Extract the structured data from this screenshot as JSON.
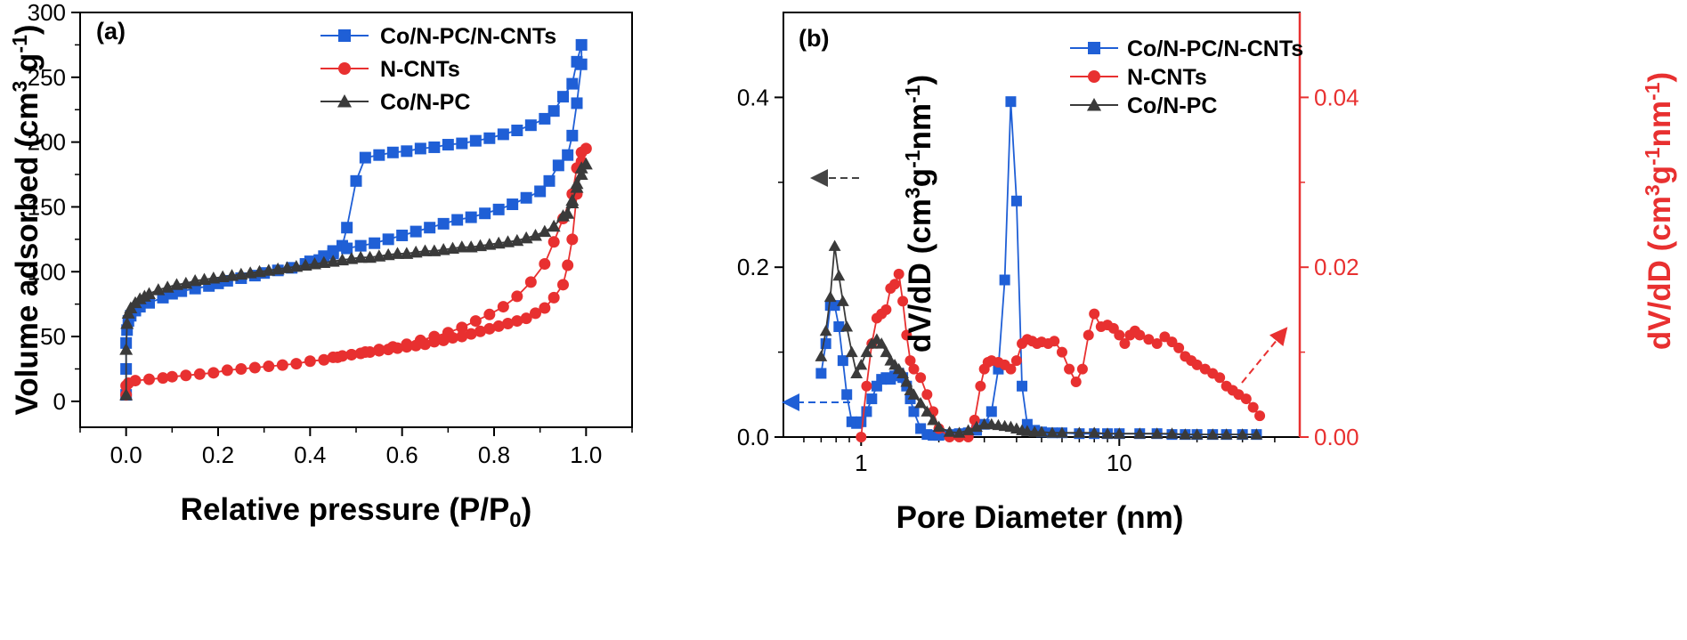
{
  "chart_data": [
    {
      "type": "line",
      "panel_label": "(a)",
      "xlabel": "Relative pressure (P/P",
      "xlabel_sub": "0",
      "xlabel_end": ")",
      "ylabel": "Volume adsorbed (cm",
      "ylabel_sup": "3",
      "ylabel_end": " g",
      "ylabel_sup2": "-1",
      "ylabel_close": ")",
      "xlim": [
        -0.1,
        1.1
      ],
      "ylim": [
        -20,
        300
      ],
      "xticks": [
        "0.0",
        "0.2",
        "0.4",
        "0.6",
        "0.8",
        "1.0"
      ],
      "xtick_values": [
        0,
        0.2,
        0.4,
        0.6,
        0.8,
        1.0
      ],
      "yticks": [
        "0",
        "50",
        "100",
        "150",
        "200",
        "250",
        "300"
      ],
      "ytick_values": [
        0,
        50,
        100,
        150,
        200,
        250,
        300
      ],
      "legend_position": "top-right",
      "series": [
        {
          "name": "Co/N-PC/N-CNTs",
          "color": "#1f5fd6",
          "marker": "square",
          "x": [
            0.0,
            0.0,
            0.0,
            0.002,
            0.005,
            0.01,
            0.02,
            0.03,
            0.05,
            0.08,
            0.1,
            0.12,
            0.15,
            0.18,
            0.2,
            0.22,
            0.25,
            0.28,
            0.3,
            0.33,
            0.36,
            0.39,
            0.42,
            0.45,
            0.47,
            0.48,
            0.5,
            0.52,
            0.55,
            0.58,
            0.61,
            0.64,
            0.67,
            0.7,
            0.73,
            0.76,
            0.79,
            0.82,
            0.85,
            0.88,
            0.91,
            0.93,
            0.95,
            0.97,
            0.98,
            0.99,
            0.99,
            0.98,
            0.97,
            0.96,
            0.94,
            0.92,
            0.9,
            0.87,
            0.84,
            0.81,
            0.78,
            0.75,
            0.72,
            0.69,
            0.66,
            0.63,
            0.6,
            0.57,
            0.54,
            0.51,
            0.48,
            0.45,
            0.43,
            0.4
          ],
          "y": [
            5,
            25,
            45,
            55,
            62,
            66,
            70,
            73,
            76,
            80,
            83,
            85,
            87,
            89,
            91,
            93,
            95,
            97,
            99,
            101,
            103,
            106,
            109,
            114,
            120,
            134,
            170,
            188,
            190,
            192,
            193,
            195,
            196,
            198,
            199,
            201,
            203,
            206,
            209,
            213,
            218,
            224,
            235,
            245,
            262,
            275,
            260,
            230,
            205,
            190,
            182,
            170,
            162,
            157,
            152,
            148,
            145,
            142,
            140,
            137,
            134,
            131,
            128,
            125,
            122,
            120,
            118,
            116,
            112,
            108
          ]
        },
        {
          "name": "N-CNTs",
          "color": "#e83030",
          "marker": "circle",
          "x": [
            0.0,
            0.0,
            0.005,
            0.02,
            0.05,
            0.08,
            0.1,
            0.13,
            0.16,
            0.19,
            0.22,
            0.25,
            0.28,
            0.31,
            0.34,
            0.37,
            0.4,
            0.43,
            0.46,
            0.49,
            0.52,
            0.55,
            0.58,
            0.61,
            0.64,
            0.67,
            0.7,
            0.73,
            0.76,
            0.79,
            0.82,
            0.85,
            0.88,
            0.91,
            0.93,
            0.95,
            0.97,
            0.98,
            0.99,
            1.0,
            0.99,
            0.98,
            0.97,
            0.96,
            0.95,
            0.93,
            0.91,
            0.89,
            0.87,
            0.85,
            0.83,
            0.81,
            0.79,
            0.77,
            0.75,
            0.73,
            0.71,
            0.69,
            0.67,
            0.65,
            0.63,
            0.61,
            0.59,
            0.57,
            0.55,
            0.53,
            0.51,
            0.49,
            0.47,
            0.45
          ],
          "y": [
            5,
            12,
            14,
            16,
            17,
            18,
            19,
            20,
            21,
            22,
            24,
            25,
            26,
            27,
            28,
            29,
            31,
            32,
            34,
            36,
            38,
            40,
            42,
            44,
            47,
            50,
            53,
            57,
            62,
            67,
            73,
            81,
            92,
            106,
            123,
            141,
            160,
            180,
            192,
            195,
            185,
            160,
            125,
            105,
            90,
            80,
            72,
            68,
            64,
            62,
            60,
            58,
            56,
            54,
            52,
            50,
            49,
            47,
            46,
            44,
            43,
            42,
            41,
            40,
            39,
            38,
            37,
            36,
            35,
            34
          ]
        },
        {
          "name": "Co/N-PC",
          "color": "#3a3a3a",
          "marker": "triangle",
          "x": [
            0.0,
            0.0,
            0.002,
            0.005,
            0.01,
            0.02,
            0.03,
            0.04,
            0.05,
            0.07,
            0.09,
            0.11,
            0.13,
            0.15,
            0.17,
            0.19,
            0.21,
            0.23,
            0.25,
            0.27,
            0.29,
            0.31,
            0.33,
            0.35,
            0.37,
            0.39,
            0.41,
            0.43,
            0.45,
            0.47,
            0.49,
            0.51,
            0.53,
            0.55,
            0.57,
            0.59,
            0.61,
            0.63,
            0.65,
            0.67,
            0.69,
            0.71,
            0.73,
            0.75,
            0.77,
            0.79,
            0.81,
            0.83,
            0.85,
            0.87,
            0.89,
            0.91,
            0.93,
            0.95,
            0.97,
            0.98,
            0.99,
            1.0,
            0.99,
            0.98,
            0.97,
            0.96
          ],
          "y": [
            5,
            40,
            60,
            68,
            72,
            76,
            79,
            81,
            83,
            86,
            88,
            90,
            91,
            93,
            94,
            95,
            96,
            97,
            98,
            99,
            100,
            101,
            102,
            103,
            104,
            105,
            106,
            107,
            108,
            109,
            110,
            111,
            111,
            112,
            113,
            114,
            114,
            115,
            116,
            116,
            117,
            118,
            119,
            119,
            120,
            121,
            122,
            123,
            124,
            126,
            128,
            131,
            135,
            143,
            153,
            168,
            180,
            183,
            175,
            165,
            155,
            145
          ]
        }
      ]
    },
    {
      "type": "line",
      "panel_label": "(b)",
      "xlabel": "Pore Diameter (nm)",
      "ylabel_left": "dV/dD (cm",
      "ylabel_left_sup": "3",
      "ylabel_left_mid": "g",
      "ylabel_left_sup2": "-1",
      "ylabel_left_end": "nm",
      "ylabel_left_sup3": "-1",
      "ylabel_left_close": ")",
      "ylabel_right": "dV/dD (cm",
      "ylabel_right_sup": "3",
      "ylabel_right_mid": "g",
      "ylabel_right_sup2": "-1",
      "ylabel_right_end": "nm",
      "ylabel_right_sup3": "-1",
      "ylabel_right_close": ")",
      "x_scale": "log",
      "xlim": [
        0.5,
        50
      ],
      "ylim_left": [
        0,
        0.5
      ],
      "ylim_right": [
        0,
        0.05
      ],
      "xticks": [
        "1",
        "10"
      ],
      "xtick_values": [
        1,
        10
      ],
      "yticks_left": [
        "0.0",
        "0.2",
        "0.4"
      ],
      "ytick_values_left": [
        0,
        0.2,
        0.4
      ],
      "yticks_right": [
        "0.00",
        "0.02",
        "0.04"
      ],
      "ytick_values_right": [
        0,
        0.02,
        0.04
      ],
      "right_axis_color": "#e83030",
      "legend_position": "top-right",
      "series": [
        {
          "name": "Co/N-PC/N-CNTs",
          "color": "#1f5fd6",
          "marker": "square",
          "axis": "left",
          "x": [
            0.7,
            0.73,
            0.76,
            0.79,
            0.82,
            0.85,
            0.88,
            0.92,
            0.96,
            1.0,
            1.05,
            1.1,
            1.15,
            1.2,
            1.25,
            1.3,
            1.35,
            1.4,
            1.45,
            1.5,
            1.55,
            1.6,
            1.7,
            1.8,
            1.9,
            2.0,
            2.2,
            2.4,
            2.6,
            2.8,
            3.0,
            3.2,
            3.4,
            3.6,
            3.8,
            4.0,
            4.2,
            4.4,
            4.7,
            5.0,
            5.5,
            6.0,
            7.0,
            8.0,
            9.0,
            10.0,
            12.0,
            14.0,
            16.0,
            18.0,
            20.0,
            23.0,
            26.0,
            30.0,
            34.0
          ],
          "y": [
            0.075,
            0.11,
            0.155,
            0.155,
            0.13,
            0.09,
            0.05,
            0.018,
            0.016,
            0.018,
            0.03,
            0.045,
            0.06,
            0.068,
            0.07,
            0.068,
            0.072,
            0.075,
            0.07,
            0.06,
            0.045,
            0.03,
            0.01,
            0.003,
            0.002,
            0.002,
            0.003,
            0.004,
            0.005,
            0.008,
            0.015,
            0.03,
            0.08,
            0.185,
            0.395,
            0.278,
            0.06,
            0.015,
            0.008,
            0.006,
            0.005,
            0.005,
            0.004,
            0.004,
            0.004,
            0.004,
            0.004,
            0.004,
            0.003,
            0.003,
            0.003,
            0.003,
            0.003,
            0.003,
            0.003
          ]
        },
        {
          "name": "N-CNTs",
          "color": "#e83030",
          "marker": "circle",
          "axis": "right",
          "x": [
            1.0,
            1.05,
            1.1,
            1.15,
            1.2,
            1.25,
            1.3,
            1.35,
            1.4,
            1.45,
            1.5,
            1.55,
            1.6,
            1.7,
            1.8,
            1.9,
            2.0,
            2.2,
            2.4,
            2.6,
            2.75,
            2.9,
            3.0,
            3.1,
            3.2,
            3.4,
            3.6,
            3.8,
            4.0,
            4.2,
            4.4,
            4.6,
            4.8,
            5.0,
            5.3,
            5.6,
            6.0,
            6.4,
            6.8,
            7.2,
            7.6,
            8.0,
            8.5,
            9.0,
            9.5,
            10.0,
            10.5,
            11.0,
            11.5,
            12.0,
            13.0,
            14.0,
            15.0,
            16.0,
            17.0,
            18.0,
            19.0,
            20.0,
            21.5,
            23.0,
            24.5,
            26.0,
            27.5,
            29.0,
            31.0,
            33.0,
            35.0
          ],
          "y": [
            0.0,
            0.006,
            0.011,
            0.014,
            0.0145,
            0.015,
            0.0175,
            0.018,
            0.0192,
            0.016,
            0.012,
            0.009,
            0.008,
            0.007,
            0.005,
            0.003,
            0.001,
            0.0,
            0.0,
            0.0,
            0.002,
            0.006,
            0.008,
            0.0088,
            0.009,
            0.0088,
            0.0085,
            0.008,
            0.009,
            0.011,
            0.0115,
            0.0113,
            0.011,
            0.0112,
            0.011,
            0.0113,
            0.01,
            0.008,
            0.0065,
            0.008,
            0.012,
            0.0145,
            0.013,
            0.0132,
            0.0128,
            0.012,
            0.011,
            0.012,
            0.0125,
            0.012,
            0.0115,
            0.011,
            0.0118,
            0.0112,
            0.0105,
            0.0095,
            0.009,
            0.0085,
            0.008,
            0.0075,
            0.007,
            0.006,
            0.0055,
            0.005,
            0.0045,
            0.0035,
            0.0025
          ]
        },
        {
          "name": "Co/N-PC",
          "color": "#3a3a3a",
          "marker": "triangle",
          "axis": "left",
          "x": [
            0.7,
            0.73,
            0.76,
            0.79,
            0.82,
            0.85,
            0.88,
            0.92,
            0.96,
            1.0,
            1.05,
            1.1,
            1.15,
            1.2,
            1.25,
            1.3,
            1.35,
            1.4,
            1.45,
            1.5,
            1.55,
            1.6,
            1.7,
            1.8,
            1.9,
            2.0,
            2.2,
            2.4,
            2.6,
            2.8,
            3.0,
            3.2,
            3.4,
            3.6,
            3.8,
            4.0,
            4.2,
            4.4,
            4.7,
            5.0,
            5.5,
            6.0,
            7.0,
            8.0,
            9.0,
            10.0,
            12.0,
            14.0,
            16.0,
            18.0,
            20.0,
            23.0,
            26.0,
            30.0,
            34.0
          ],
          "y": [
            0.095,
            0.125,
            0.165,
            0.225,
            0.19,
            0.16,
            0.13,
            0.1,
            0.075,
            0.085,
            0.1,
            0.11,
            0.115,
            0.11,
            0.1,
            0.09,
            0.085,
            0.08,
            0.075,
            0.065,
            0.055,
            0.05,
            0.04,
            0.03,
            0.02,
            0.012,
            0.006,
            0.005,
            0.008,
            0.012,
            0.015,
            0.015,
            0.014,
            0.013,
            0.012,
            0.01,
            0.008,
            0.007,
            0.006,
            0.006,
            0.005,
            0.005,
            0.005,
            0.005,
            0.004,
            0.004,
            0.004,
            0.004,
            0.004,
            0.003,
            0.003,
            0.003,
            0.003,
            0.003,
            0.003
          ]
        }
      ]
    }
  ]
}
